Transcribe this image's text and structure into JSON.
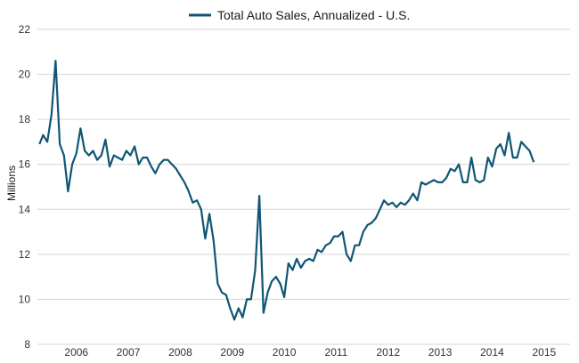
{
  "chart_data": {
    "type": "line",
    "title": "",
    "ylabel": "Millions",
    "xlabel": "",
    "ylim": [
      8,
      22
    ],
    "yticks": [
      8,
      10,
      12,
      14,
      16,
      18,
      20,
      22
    ],
    "xlim": [
      2005.25,
      2015.5
    ],
    "xticks": [
      {
        "value": 2006.0,
        "label": "2006"
      },
      {
        "value": 2007.0,
        "label": "2007"
      },
      {
        "value": 2008.0,
        "label": "2008"
      },
      {
        "value": 2009.0,
        "label": "2009"
      },
      {
        "value": 2010.0,
        "label": "2010"
      },
      {
        "value": 2011.0,
        "label": "2011"
      },
      {
        "value": 2012.0,
        "label": "2012"
      },
      {
        "value": 2013.0,
        "label": "2013"
      },
      {
        "value": 2014.0,
        "label": "2014"
      },
      {
        "value": 2015.0,
        "label": "2015"
      }
    ],
    "grid": true,
    "legend": "top-center",
    "color": "#0f5674",
    "series": [
      {
        "name": "Total Auto Sales, Annualized - U.S.",
        "points": [
          [
            2005.29,
            16.9
          ],
          [
            2005.36,
            17.3
          ],
          [
            2005.44,
            17.0
          ],
          [
            2005.52,
            18.2
          ],
          [
            2005.6,
            20.6
          ],
          [
            2005.68,
            16.9
          ],
          [
            2005.76,
            16.4
          ],
          [
            2005.84,
            14.8
          ],
          [
            2005.92,
            16.0
          ],
          [
            2006.0,
            16.5
          ],
          [
            2006.08,
            17.6
          ],
          [
            2006.16,
            16.6
          ],
          [
            2006.24,
            16.4
          ],
          [
            2006.32,
            16.6
          ],
          [
            2006.4,
            16.2
          ],
          [
            2006.48,
            16.4
          ],
          [
            2006.56,
            17.1
          ],
          [
            2006.64,
            15.9
          ],
          [
            2006.72,
            16.4
          ],
          [
            2006.8,
            16.3
          ],
          [
            2006.88,
            16.2
          ],
          [
            2006.96,
            16.6
          ],
          [
            2007.04,
            16.4
          ],
          [
            2007.12,
            16.8
          ],
          [
            2007.2,
            16.0
          ],
          [
            2007.28,
            16.3
          ],
          [
            2007.36,
            16.3
          ],
          [
            2007.44,
            15.9
          ],
          [
            2007.52,
            15.6
          ],
          [
            2007.6,
            16.0
          ],
          [
            2007.68,
            16.2
          ],
          [
            2007.76,
            16.2
          ],
          [
            2007.84,
            16.0
          ],
          [
            2007.92,
            15.8
          ],
          [
            2008.0,
            15.5
          ],
          [
            2008.08,
            15.2
          ],
          [
            2008.16,
            14.8
          ],
          [
            2008.24,
            14.3
          ],
          [
            2008.32,
            14.4
          ],
          [
            2008.4,
            14.0
          ],
          [
            2008.48,
            12.7
          ],
          [
            2008.56,
            13.8
          ],
          [
            2008.64,
            12.6
          ],
          [
            2008.72,
            10.7
          ],
          [
            2008.8,
            10.3
          ],
          [
            2008.88,
            10.2
          ],
          [
            2008.96,
            9.6
          ],
          [
            2009.04,
            9.1
          ],
          [
            2009.12,
            9.6
          ],
          [
            2009.2,
            9.2
          ],
          [
            2009.28,
            10.0
          ],
          [
            2009.36,
            10.0
          ],
          [
            2009.44,
            11.3
          ],
          [
            2009.52,
            14.6
          ],
          [
            2009.6,
            9.4
          ],
          [
            2009.68,
            10.3
          ],
          [
            2009.76,
            10.8
          ],
          [
            2009.84,
            11.0
          ],
          [
            2009.92,
            10.7
          ],
          [
            2010.0,
            10.1
          ],
          [
            2010.08,
            11.6
          ],
          [
            2010.16,
            11.3
          ],
          [
            2010.24,
            11.8
          ],
          [
            2010.32,
            11.4
          ],
          [
            2010.4,
            11.7
          ],
          [
            2010.48,
            11.8
          ],
          [
            2010.56,
            11.7
          ],
          [
            2010.64,
            12.2
          ],
          [
            2010.72,
            12.1
          ],
          [
            2010.8,
            12.4
          ],
          [
            2010.88,
            12.5
          ],
          [
            2010.96,
            12.8
          ],
          [
            2011.04,
            12.8
          ],
          [
            2011.12,
            13.0
          ],
          [
            2011.2,
            12.0
          ],
          [
            2011.28,
            11.7
          ],
          [
            2011.36,
            12.4
          ],
          [
            2011.44,
            12.4
          ],
          [
            2011.52,
            13.0
          ],
          [
            2011.6,
            13.3
          ],
          [
            2011.68,
            13.4
          ],
          [
            2011.76,
            13.6
          ],
          [
            2011.84,
            14.0
          ],
          [
            2011.92,
            14.4
          ],
          [
            2012.0,
            14.2
          ],
          [
            2012.08,
            14.3
          ],
          [
            2012.16,
            14.1
          ],
          [
            2012.24,
            14.3
          ],
          [
            2012.32,
            14.2
          ],
          [
            2012.4,
            14.4
          ],
          [
            2012.48,
            14.7
          ],
          [
            2012.56,
            14.4
          ],
          [
            2012.64,
            15.2
          ],
          [
            2012.72,
            15.1
          ],
          [
            2012.8,
            15.2
          ],
          [
            2012.88,
            15.3
          ],
          [
            2012.96,
            15.2
          ],
          [
            2013.04,
            15.2
          ],
          [
            2013.12,
            15.4
          ],
          [
            2013.2,
            15.8
          ],
          [
            2013.28,
            15.7
          ],
          [
            2013.36,
            16.0
          ],
          [
            2013.44,
            15.2
          ],
          [
            2013.52,
            15.2
          ],
          [
            2013.6,
            16.3
          ],
          [
            2013.68,
            15.3
          ],
          [
            2013.76,
            15.2
          ],
          [
            2013.84,
            15.3
          ],
          [
            2013.92,
            16.3
          ],
          [
            2014.0,
            15.9
          ],
          [
            2014.08,
            16.7
          ],
          [
            2014.16,
            16.9
          ],
          [
            2014.24,
            16.4
          ],
          [
            2014.32,
            17.4
          ],
          [
            2014.4,
            16.3
          ],
          [
            2014.48,
            16.3
          ],
          [
            2014.56,
            17.0
          ],
          [
            2014.64,
            16.8
          ],
          [
            2014.72,
            16.6
          ],
          [
            2014.8,
            16.1
          ]
        ]
      }
    ]
  }
}
